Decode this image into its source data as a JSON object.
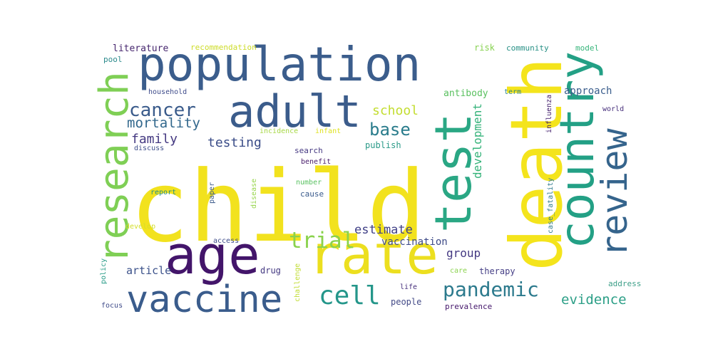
{
  "words": [
    {
      "text": "child",
      "color": "#f2e21e"
    },
    {
      "text": "population",
      "color": "#3b5d8c"
    },
    {
      "text": "death",
      "color": "#f4e41c"
    },
    {
      "text": "adult",
      "color": "#3b5c8b"
    },
    {
      "text": "test",
      "color": "#2aa784"
    },
    {
      "text": "country",
      "color": "#23a085"
    },
    {
      "text": "rate",
      "color": "#ecdf1f"
    },
    {
      "text": "age",
      "color": "#43156a"
    },
    {
      "text": "vaccine",
      "color": "#3a5c8c"
    },
    {
      "text": "research",
      "color": "#7fcf55"
    },
    {
      "text": "review",
      "color": "#35648c"
    },
    {
      "text": "pandemic",
      "color": "#2c7a8d"
    },
    {
      "text": "cell",
      "color": "#24968a"
    },
    {
      "text": "trial",
      "color": "#8ad24d"
    },
    {
      "text": "cancer",
      "color": "#3a5b8b"
    },
    {
      "text": "evidence",
      "color": "#2c9f87"
    },
    {
      "text": "base",
      "color": "#2a7c8c"
    },
    {
      "text": "mortality",
      "color": "#31678c"
    },
    {
      "text": "estimate",
      "color": "#3f3f86"
    },
    {
      "text": "family",
      "color": "#443981"
    },
    {
      "text": "testing",
      "color": "#3b4d88"
    },
    {
      "text": "school",
      "color": "#c3dd30"
    },
    {
      "text": "development",
      "color": "#35b37a"
    },
    {
      "text": "group",
      "color": "#443982"
    },
    {
      "text": "article",
      "color": "#3b518a"
    },
    {
      "text": "vaccination",
      "color": "#3d4a87"
    },
    {
      "text": "approach",
      "color": "#3a5d8c"
    },
    {
      "text": "antibody",
      "color": "#59c05f"
    },
    {
      "text": "literature",
      "color": "#46266e"
    },
    {
      "text": "recommendation",
      "color": "#cddc29"
    },
    {
      "text": "risk",
      "color": "#86d14f"
    },
    {
      "text": "community",
      "color": "#279085"
    },
    {
      "text": "model",
      "color": "#37b57b"
    },
    {
      "text": "pool",
      "color": "#2b8a8c"
    },
    {
      "text": "household",
      "color": "#3e4b8a"
    },
    {
      "text": "term",
      "color": "#2a858c"
    },
    {
      "text": "influenza",
      "color": "#411c6b"
    },
    {
      "text": "world",
      "color": "#462e7b"
    },
    {
      "text": "discuss",
      "color": "#3e4e8a"
    },
    {
      "text": "incidence",
      "color": "#a7d845"
    },
    {
      "text": "infant",
      "color": "#dfe221"
    },
    {
      "text": "publish",
      "color": "#2a9a88"
    },
    {
      "text": "search",
      "color": "#443781"
    },
    {
      "text": "benefit",
      "color": "#461a69"
    },
    {
      "text": "disease",
      "color": "#97d54c"
    },
    {
      "text": "number",
      "color": "#5bc263"
    },
    {
      "text": "report",
      "color": "#228f8a"
    },
    {
      "text": "paper",
      "color": "#3b5a8a"
    },
    {
      "text": "cause",
      "color": "#3a5b8c"
    },
    {
      "text": "case_fatality",
      "color": "#2f7a8e"
    },
    {
      "text": "access",
      "color": "#3d4b88"
    },
    {
      "text": "develop",
      "color": "#d4de2a"
    },
    {
      "text": "policy",
      "color": "#2a9c88"
    },
    {
      "text": "drug",
      "color": "#433881"
    },
    {
      "text": "care",
      "color": "#8bd34f"
    },
    {
      "text": "therapy",
      "color": "#453f86"
    },
    {
      "text": "challenge",
      "color": "#c1dd33"
    },
    {
      "text": "life",
      "color": "#452e7b"
    },
    {
      "text": "address",
      "color": "#3d9f88"
    },
    {
      "text": "focus",
      "color": "#3e4a89"
    },
    {
      "text": "people",
      "color": "#434a87"
    },
    {
      "text": "prevalence",
      "color": "#43156a"
    }
  ]
}
